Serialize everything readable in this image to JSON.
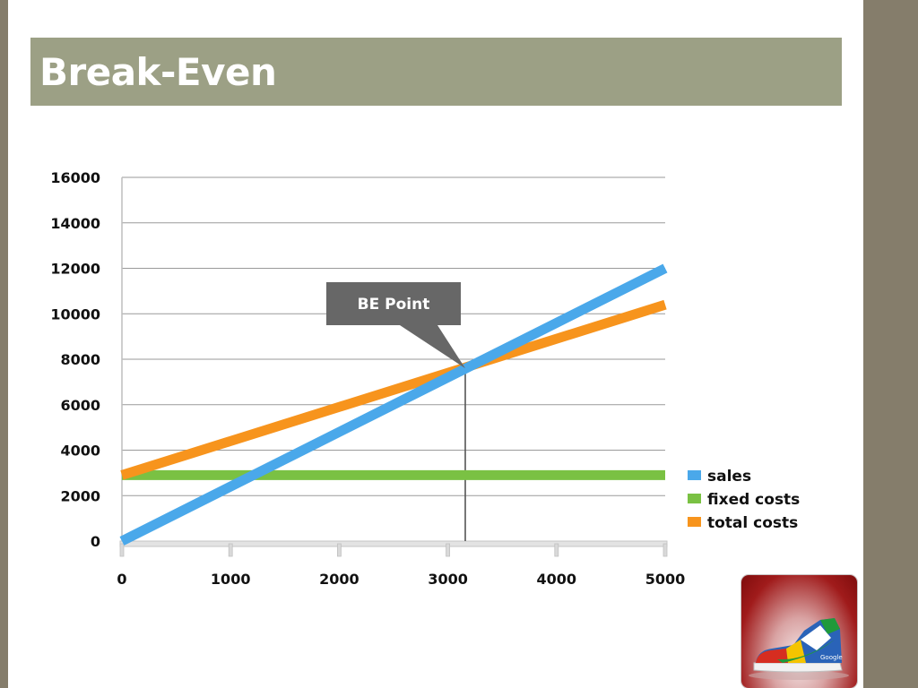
{
  "slide": {
    "title": "Break-Even"
  },
  "chart_data": {
    "type": "line",
    "x": [
      0,
      5000
    ],
    "series": [
      {
        "name": "sales",
        "values": [
          0,
          12000
        ],
        "color": "#4aa8ea"
      },
      {
        "name": "fixed costs",
        "values": [
          2900,
          2900
        ],
        "color": "#7ac143"
      },
      {
        "name": "total costs",
        "values": [
          2900,
          10400
        ],
        "color": "#f7941d"
      }
    ],
    "xticks": [
      0,
      1000,
      2000,
      3000,
      4000,
      5000
    ],
    "yticks": [
      0,
      2000,
      4000,
      6000,
      8000,
      10000,
      12000,
      14000,
      16000
    ],
    "xlim": [
      0,
      5000
    ],
    "ylim": [
      0,
      16000
    ],
    "grid": true,
    "legend": "right",
    "annotation": {
      "text": "BE Point",
      "x": 3160,
      "y": 7600
    }
  },
  "thumbnail": {
    "icon": "sneaker-icon",
    "label": "Google"
  }
}
